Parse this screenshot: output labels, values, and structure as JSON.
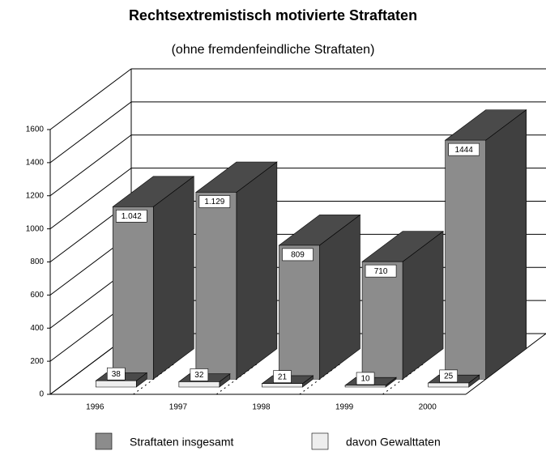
{
  "chart_data": {
    "type": "bar3d",
    "title": "Rechtsextremistisch motivierte Straftaten",
    "subtitle": "(ohne fremdenfeindliche Straftaten)",
    "categories": [
      "1996",
      "1997",
      "1998",
      "1999",
      "2000"
    ],
    "series": [
      {
        "name": "Straftaten insgesamt",
        "color": "#8c8c8c",
        "values": [
          1042,
          1129,
          809,
          710,
          1444
        ],
        "value_labels": [
          "1.042",
          "1.129",
          "809",
          "710",
          "1444"
        ]
      },
      {
        "name": "davon Gewalttaten",
        "color": "#eeeeee",
        "values": [
          38,
          32,
          21,
          10,
          25
        ]
      }
    ],
    "ylim": [
      0,
      1600
    ],
    "yticks": [
      0,
      200,
      400,
      600,
      800,
      1000,
      1200,
      1400,
      1600
    ],
    "grid": true,
    "legend": "bottom"
  }
}
